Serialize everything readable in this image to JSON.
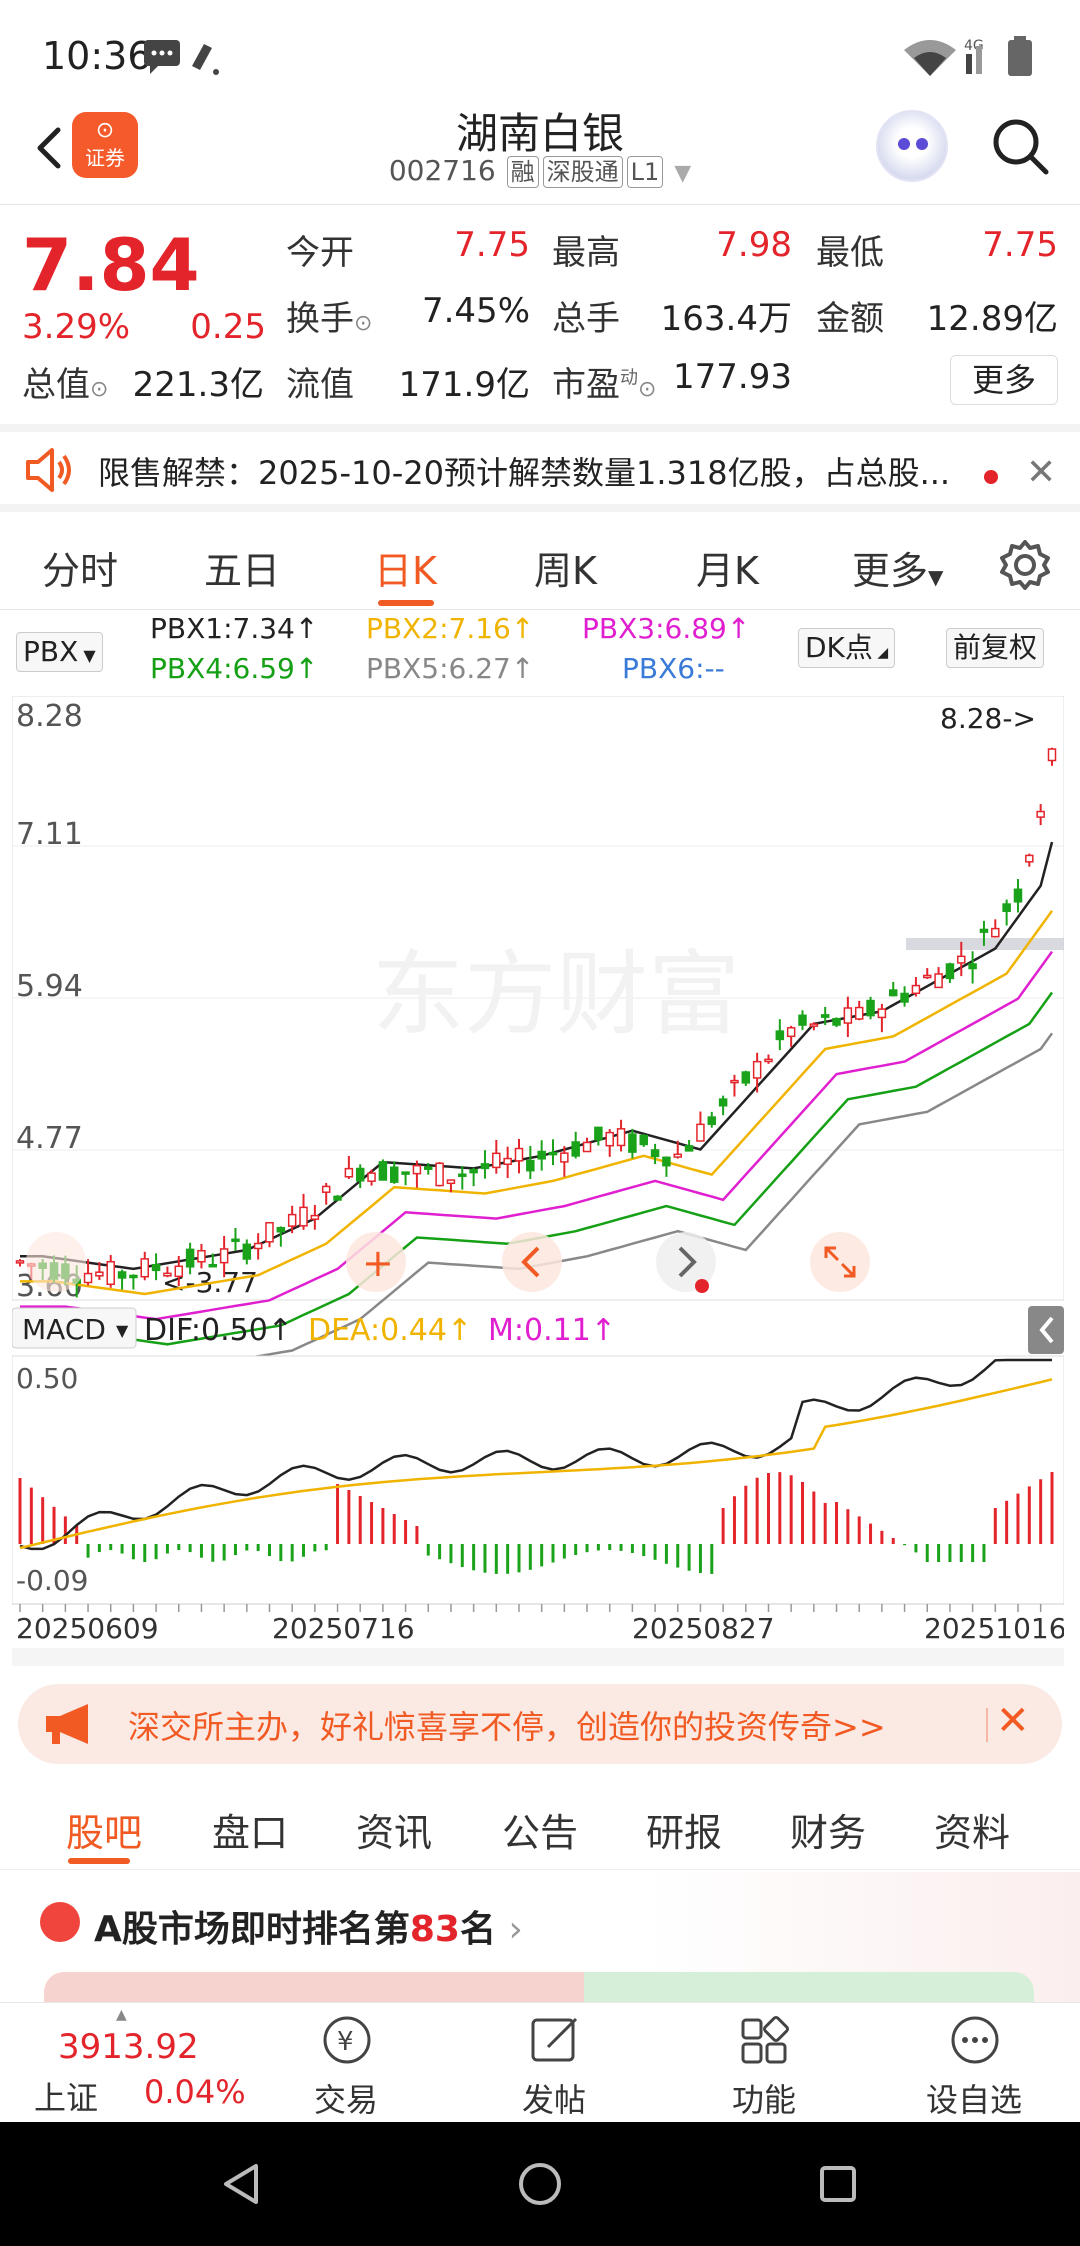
{
  "status": {
    "time": "10:36",
    "network": "4G"
  },
  "header": {
    "stock_name": "湖南白银",
    "stock_code": "002716",
    "tags": [
      "融",
      "深股通",
      "L1"
    ],
    "brand_label": "证券"
  },
  "quote": {
    "price": "7.84",
    "change_pct": "3.29%",
    "change": "0.25",
    "open_label": "今开",
    "open": "7.75",
    "high_label": "最高",
    "high": "7.98",
    "low_label": "最低",
    "low": "7.75",
    "turnover_label": "换手",
    "turnover": "7.45%",
    "volume_label": "总手",
    "volume": "163.4万",
    "amount_label": "金额",
    "amount": "12.89亿",
    "mktcap_label": "总值",
    "mktcap": "221.3亿",
    "float_label": "流值",
    "float": "171.9亿",
    "pe_label": "市盈",
    "pe_sup": "动",
    "pe": "177.93",
    "more_label": "更多"
  },
  "notice": {
    "text": "限售解禁：2025-10-20预计解禁数量1.318亿股，占总股..."
  },
  "ktabs": [
    "分时",
    "五日",
    "日K",
    "周K",
    "月K",
    "更多"
  ],
  "ktab_active": 2,
  "indicator": {
    "selector": "PBX",
    "pbx1": "PBX1:7.34↑",
    "pbx2": "PBX2:7.16↑",
    "pbx3": "PBX3:6.89↑",
    "pbx4": "PBX4:6.59↑",
    "pbx5": "PBX5:6.27↑",
    "pbx6": "PBX6:--",
    "dk_label": "DK点",
    "adjust_label": "前复权"
  },
  "colors": {
    "up": "#e3252b",
    "down": "#1aa31a",
    "accent": "#f15a22",
    "pbx1": "#222222",
    "pbx2": "#f0b400",
    "pbx3": "#e020d0",
    "pbx4": "#15a015",
    "pbx5": "#888888",
    "pbx6": "#3a7ad8"
  },
  "chart_data": {
    "type": "candlestick",
    "price_ticks": [
      "8.28",
      "7.11",
      "5.94",
      "4.77",
      "3.60"
    ],
    "max_marker": "8.28->",
    "min_marker": "<-3.77",
    "watermark": "东方财富",
    "macd": {
      "selector": "MACD",
      "dif": "DIF:0.50↑",
      "dea": "DEA:0.44↑",
      "m": "M:0.11↑",
      "ticks": [
        "0.50",
        "-0.09"
      ]
    },
    "dates": [
      "20250609",
      "20250716",
      "20250827",
      "20251016"
    ]
  },
  "promo": {
    "text": "深交所主办，好礼惊喜享不停，创造你的投资传奇>>"
  },
  "btabs": [
    "股吧",
    "盘口",
    "资讯",
    "公告",
    "研报",
    "财务",
    "资料"
  ],
  "ranking": {
    "prefix": "A股市场即时排名第",
    "rank": "83",
    "suffix": "名",
    "arrow": "›"
  },
  "bottom_nav": {
    "index_value": "3913.92",
    "index_name": "上证",
    "index_pct": "0.04%",
    "trade": "交易",
    "post": "发帖",
    "func": "功能",
    "watch": "设自选"
  }
}
